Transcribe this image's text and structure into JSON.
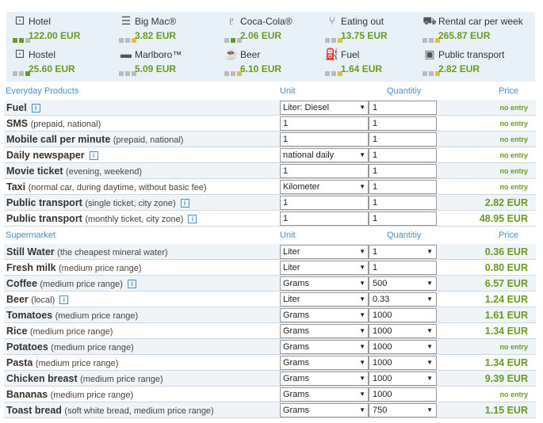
{
  "summary": [
    {
      "icon": "bed-icon",
      "label": "Hotel",
      "value": "122.00 EUR",
      "bars": [
        "#6a9a1f",
        "#6a9a1f",
        "#bbb"
      ]
    },
    {
      "icon": "burger-icon",
      "label": "Big Mac®",
      "value": "3.82 EUR",
      "bars": [
        "#bbb",
        "#bbb",
        "#e0c040"
      ]
    },
    {
      "icon": "bottle-icon",
      "label": "Coca-Cola®",
      "value": "2.06 EUR",
      "bars": [
        "#bbb",
        "#6a9a1f",
        "#bbb"
      ]
    },
    {
      "icon": "fork-knife-icon",
      "label": "Eating out",
      "value": "13.75 EUR",
      "bars": [
        "#bbb",
        "#bbb",
        "#e0c040"
      ]
    },
    {
      "icon": "car-icon",
      "label": "Rental car per week",
      "value": "265.87 EUR",
      "bars": [
        "#bbb",
        "#bbb",
        "#e0c040"
      ]
    },
    {
      "icon": "bed-icon",
      "label": "Hostel",
      "value": "25.60 EUR",
      "bars": [
        "#bbb",
        "#bbb",
        "#6a9a1f"
      ]
    },
    {
      "icon": "cigarette-icon",
      "label": "Marlboro™",
      "value": "5.09 EUR",
      "bars": [
        "#bbb",
        "#bbb",
        "#bbb"
      ]
    },
    {
      "icon": "beer-mug-icon",
      "label": "Beer",
      "value": "6.10 EUR",
      "bars": [
        "#bbb",
        "#bbb",
        "#e0c040"
      ]
    },
    {
      "icon": "fuel-pump-icon",
      "label": "Fuel",
      "value": "1.64 EUR",
      "bars": [
        "#bbb",
        "#bbb",
        "#e0c040"
      ]
    },
    {
      "icon": "bus-icon",
      "label": "Public transport",
      "value": "2.82 EUR",
      "bars": [
        "#bbb",
        "#bbb",
        "#e0c040"
      ]
    }
  ],
  "sections": [
    {
      "title": "Everyday Products",
      "columns": {
        "unit": "Unit",
        "quantity": "Quantitiy",
        "price": "Price"
      },
      "rows": [
        {
          "name": "Fuel",
          "detail": "",
          "info": true,
          "unit": "Liter: Diesel",
          "unit_dropdown": true,
          "qty": "1",
          "qty_dropdown": false,
          "price": "no entry"
        },
        {
          "name": "SMS",
          "detail": "(prepaid, national)",
          "info": false,
          "unit": "1",
          "unit_dropdown": false,
          "qty": "1",
          "qty_dropdown": false,
          "price": "no entry"
        },
        {
          "name": "Mobile call per minute",
          "detail": "(prepaid, national)",
          "info": false,
          "unit": "1",
          "unit_dropdown": false,
          "qty": "1",
          "qty_dropdown": false,
          "price": "no entry"
        },
        {
          "name": "Daily newspaper",
          "detail": "",
          "info": true,
          "unit": "national daily",
          "unit_dropdown": true,
          "qty": "1",
          "qty_dropdown": false,
          "price": "no entry"
        },
        {
          "name": "Movie ticket",
          "detail": "(evening, weekend)",
          "info": false,
          "unit": "1",
          "unit_dropdown": false,
          "qty": "1",
          "qty_dropdown": false,
          "price": "no entry"
        },
        {
          "name": "Taxi",
          "detail": "(normal car, during daytime, without basic fee)",
          "info": false,
          "unit": "Kilometer",
          "unit_dropdown": true,
          "qty": "1",
          "qty_dropdown": false,
          "price": "no entry"
        },
        {
          "name": "Public transport",
          "detail": "(single ticket, city zone)",
          "info": true,
          "unit": "1",
          "unit_dropdown": false,
          "qty": "1",
          "qty_dropdown": false,
          "price": "2.82 EUR"
        },
        {
          "name": "Public transport",
          "detail": "(monthly ticket, city zone)",
          "info": true,
          "unit": "1",
          "unit_dropdown": false,
          "qty": "1",
          "qty_dropdown": false,
          "price": "48.95 EUR"
        }
      ]
    },
    {
      "title": "Supermarket",
      "columns": {
        "unit": "Unit",
        "quantity": "Quantitiy",
        "price": "Price"
      },
      "rows": [
        {
          "name": "Still Water",
          "detail": "(the cheapest mineral water)",
          "info": false,
          "unit": "Liter",
          "unit_dropdown": true,
          "qty": "1",
          "qty_dropdown": true,
          "price": "0.36 EUR"
        },
        {
          "name": "Fresh milk",
          "detail": "(medium price range)",
          "info": false,
          "unit": "Liter",
          "unit_dropdown": true,
          "qty": "1",
          "qty_dropdown": false,
          "price": "0.80 EUR"
        },
        {
          "name": "Coffee",
          "detail": "(medium price range)",
          "info": true,
          "unit": "Grams",
          "unit_dropdown": true,
          "qty": "500",
          "qty_dropdown": true,
          "price": "6.57 EUR"
        },
        {
          "name": "Beer",
          "detail": "(local)",
          "info": true,
          "unit": "Liter",
          "unit_dropdown": true,
          "qty": "0.33",
          "qty_dropdown": true,
          "price": "1.24 EUR"
        },
        {
          "name": "Tomatoes",
          "detail": "(medium price range)",
          "info": false,
          "unit": "Grams",
          "unit_dropdown": true,
          "qty": "1000",
          "qty_dropdown": false,
          "price": "1.61 EUR"
        },
        {
          "name": "Rice",
          "detail": "(medium price range)",
          "info": false,
          "unit": "Grams",
          "unit_dropdown": true,
          "qty": "1000",
          "qty_dropdown": true,
          "price": "1.34 EUR"
        },
        {
          "name": "Potatoes",
          "detail": "(medium price range)",
          "info": false,
          "unit": "Grams",
          "unit_dropdown": true,
          "qty": "1000",
          "qty_dropdown": true,
          "price": "no entry"
        },
        {
          "name": "Pasta",
          "detail": "(medium price range)",
          "info": false,
          "unit": "Grams",
          "unit_dropdown": true,
          "qty": "1000",
          "qty_dropdown": true,
          "price": "1.34 EUR"
        },
        {
          "name": "Chicken breast",
          "detail": "(medium price range)",
          "info": false,
          "unit": "Grams",
          "unit_dropdown": true,
          "qty": "1000",
          "qty_dropdown": true,
          "price": "9.39 EUR"
        },
        {
          "name": "Bananas",
          "detail": "(medium price range)",
          "info": false,
          "unit": "Grams",
          "unit_dropdown": true,
          "qty": "1000",
          "qty_dropdown": false,
          "price": "no entry"
        },
        {
          "name": "Toast bread",
          "detail": "(soft white bread, medium price range)",
          "info": false,
          "unit": "Grams",
          "unit_dropdown": true,
          "qty": "750",
          "qty_dropdown": true,
          "price": "1.15 EUR"
        }
      ]
    }
  ]
}
